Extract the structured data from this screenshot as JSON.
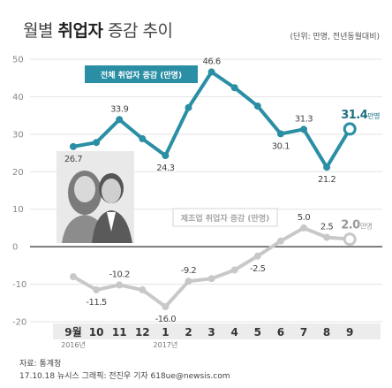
{
  "header": {
    "title_prefix": "월별",
    "title_bold": "취업자",
    "title_suffix": "증감 추이",
    "unit_note": "(단위: 만명, 전년동월대비)"
  },
  "footer": {
    "source": "자료: 통계청",
    "credit": "17.10.18  뉴시스 그래픽: 전진우 기자 618ue@newsis.com"
  },
  "colors": {
    "total": "#2a8ea4",
    "manufacturing": "#c8c8c8",
    "grid": "#e3e3e3",
    "zero": "#555555",
    "axis_band": "#ececec"
  },
  "chart_data": {
    "type": "line",
    "categories": [
      "9월",
      "10",
      "11",
      "12",
      "1",
      "2",
      "3",
      "4",
      "5",
      "6",
      "7",
      "8",
      "9"
    ],
    "category_sublabels": {
      "0": "2016년",
      "4": "2017년"
    },
    "ylim": [
      -20,
      50
    ],
    "yticks": [
      50,
      40,
      30,
      20,
      10,
      0,
      -10,
      -20
    ],
    "grid": true,
    "series": [
      {
        "name": "전체 취업자 증감 (만명)",
        "values": [
          26.7,
          27.8,
          33.9,
          28.8,
          24.3,
          37.1,
          46.6,
          42.4,
          37.5,
          30.1,
          31.3,
          21.2,
          31.4
        ],
        "labels": [
          "26.7",
          "",
          "33.9",
          "",
          "24.3",
          "",
          "46.6",
          "",
          "",
          "30.1",
          "31.3",
          "21.2",
          "31.4"
        ],
        "last_unit": "만명"
      },
      {
        "name": "제조업 취업자 증감 (만명)",
        "values": [
          -8.0,
          -11.5,
          -10.2,
          -11.5,
          -16.0,
          -9.2,
          -8.5,
          -6.2,
          -2.5,
          1.5,
          5.0,
          2.5,
          2.0
        ],
        "labels": [
          "",
          "-11.5",
          "-10.2",
          "",
          "-16.0",
          "-9.2",
          "",
          "",
          "-2.5",
          "",
          "5.0",
          "2.5",
          "2.0"
        ],
        "last_unit": "만명"
      }
    ]
  }
}
